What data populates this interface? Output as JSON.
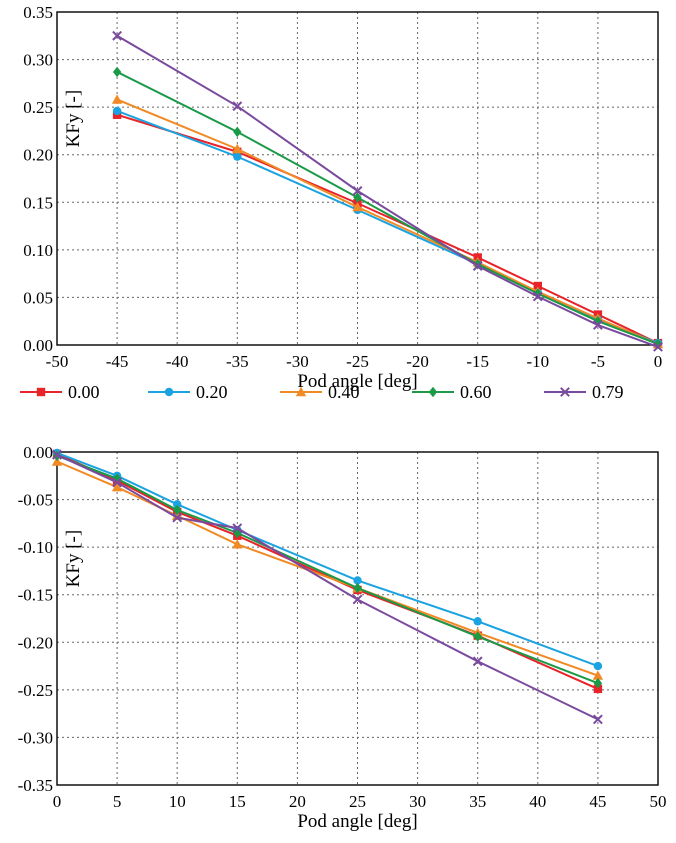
{
  "legend": [
    {
      "label": "0.00",
      "color": "#e8232a",
      "marker": "square"
    },
    {
      "label": "0.20",
      "color": "#1aa3e0",
      "marker": "circle"
    },
    {
      "label": "0.40",
      "color": "#f08a24",
      "marker": "triangle"
    },
    {
      "label": "0.60",
      "color": "#1a9a46",
      "marker": "diamond"
    },
    {
      "label": "0.79",
      "color": "#7a4a9e",
      "marker": "x"
    }
  ],
  "chart_data": [
    {
      "type": "line",
      "xlabel": "Pod angle [deg]",
      "ylabel": "KFy [-]",
      "xlim": [
        -50,
        0
      ],
      "ylim": [
        0,
        0.35
      ],
      "xticks": [
        "-50",
        "-45",
        "-40",
        "-35",
        "-30",
        "-25",
        "-20",
        "-15",
        "-10",
        "-5",
        "0"
      ],
      "yticks": [
        "0.00",
        "0.05",
        "0.10",
        "0.15",
        "0.20",
        "0.25",
        "0.30",
        "0.35"
      ],
      "grid": true,
      "x": [
        -45,
        -35,
        -25,
        -15,
        -10,
        -5,
        0
      ],
      "series": [
        {
          "name": "0.00",
          "values": [
            0.242,
            0.203,
            0.149,
            0.092,
            0.062,
            0.032,
            0.002
          ]
        },
        {
          "name": "0.20",
          "values": [
            0.246,
            0.198,
            0.142,
            0.085,
            0.055,
            0.027,
            0.002
          ]
        },
        {
          "name": "0.40",
          "values": [
            0.258,
            0.206,
            0.145,
            0.087,
            0.056,
            0.028,
            0.001
          ]
        },
        {
          "name": "0.60",
          "values": [
            0.287,
            0.224,
            0.155,
            0.085,
            0.054,
            0.025,
            0.001
          ]
        },
        {
          "name": "0.79",
          "values": [
            0.325,
            0.251,
            0.162,
            0.083,
            0.051,
            0.021,
            -0.002
          ]
        }
      ]
    },
    {
      "type": "line",
      "xlabel": "Pod angle [deg]",
      "ylabel": "KFy [-]",
      "xlim": [
        0,
        50
      ],
      "ylim": [
        -0.35,
        0
      ],
      "xticks": [
        "0",
        "5",
        "10",
        "15",
        "20",
        "25",
        "30",
        "35",
        "40",
        "45",
        "50"
      ],
      "yticks": [
        "0.00",
        "-0.05",
        "-0.10",
        "-0.15",
        "-0.20",
        "-0.25",
        "-0.30",
        "-0.35"
      ],
      "grid": true,
      "x": [
        0,
        5,
        10,
        15,
        25,
        35,
        45
      ],
      "series": [
        {
          "name": "0.00",
          "values": [
            -0.002,
            -0.03,
            -0.063,
            -0.088,
            -0.145,
            -0.193,
            -0.249
          ]
        },
        {
          "name": "0.20",
          "values": [
            -0.001,
            -0.025,
            -0.055,
            -0.082,
            -0.135,
            -0.178,
            -0.225
          ]
        },
        {
          "name": "0.40",
          "values": [
            -0.01,
            -0.037,
            -0.067,
            -0.097,
            -0.143,
            -0.19,
            -0.235
          ]
        },
        {
          "name": "0.60",
          "values": [
            -0.004,
            -0.028,
            -0.061,
            -0.085,
            -0.143,
            -0.194,
            -0.243
          ]
        },
        {
          "name": "0.79",
          "values": [
            -0.003,
            -0.032,
            -0.069,
            -0.08,
            -0.155,
            -0.22,
            -0.281
          ]
        }
      ]
    }
  ]
}
